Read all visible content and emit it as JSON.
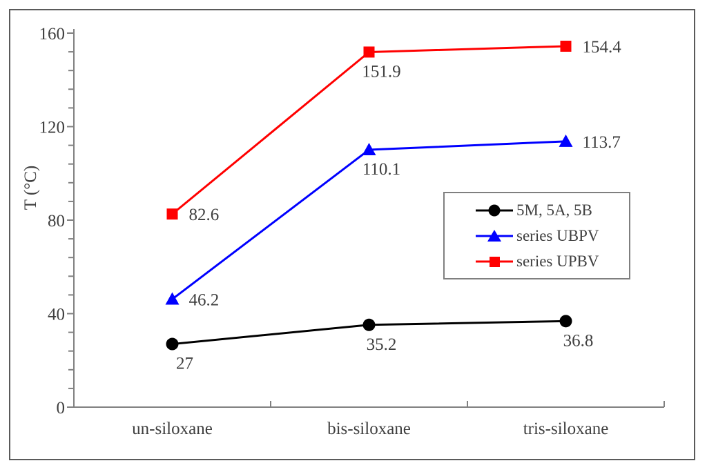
{
  "figure": {
    "background": "#ffffff",
    "outer_border_color": "#5a5a5a",
    "axis_color": "#808080",
    "text_color": "#3f3f3f",
    "legend_border_color": "#7f7f7f"
  },
  "chart_data": {
    "type": "line",
    "title": "",
    "xlabel": "",
    "ylabel": "T (°C)",
    "categories": [
      "un-siloxane",
      "bis-siloxane",
      "tris-siloxane"
    ],
    "ylim": [
      0,
      160
    ],
    "y_major_unit": 40,
    "y_minor_unit": 8,
    "y_tick_labels": [
      "0",
      "40",
      "80",
      "120",
      "160"
    ],
    "grid": false,
    "legend_position": "middle-right",
    "data_labels_shown": true,
    "series": [
      {
        "name": "5M, 5A, 5B",
        "color": "#000000",
        "marker": "circle",
        "values": [
          27,
          35.2,
          36.8
        ],
        "labels": [
          "27",
          "35.2",
          "36.8"
        ],
        "label_positions": [
          "below",
          "below",
          "below"
        ]
      },
      {
        "name": "series UBPV",
        "color": "#0000ff",
        "marker": "triangle",
        "values": [
          46.2,
          110.1,
          113.7
        ],
        "labels": [
          "46.2",
          "110.1",
          "113.7"
        ],
        "label_positions": [
          "right",
          "below",
          "right"
        ]
      },
      {
        "name": "series UPBV",
        "color": "#ff0000",
        "marker": "square",
        "values": [
          82.6,
          151.9,
          154.4
        ],
        "labels": [
          "82.6",
          "151.9",
          "154.4"
        ],
        "label_positions": [
          "right",
          "below",
          "right"
        ]
      }
    ]
  }
}
